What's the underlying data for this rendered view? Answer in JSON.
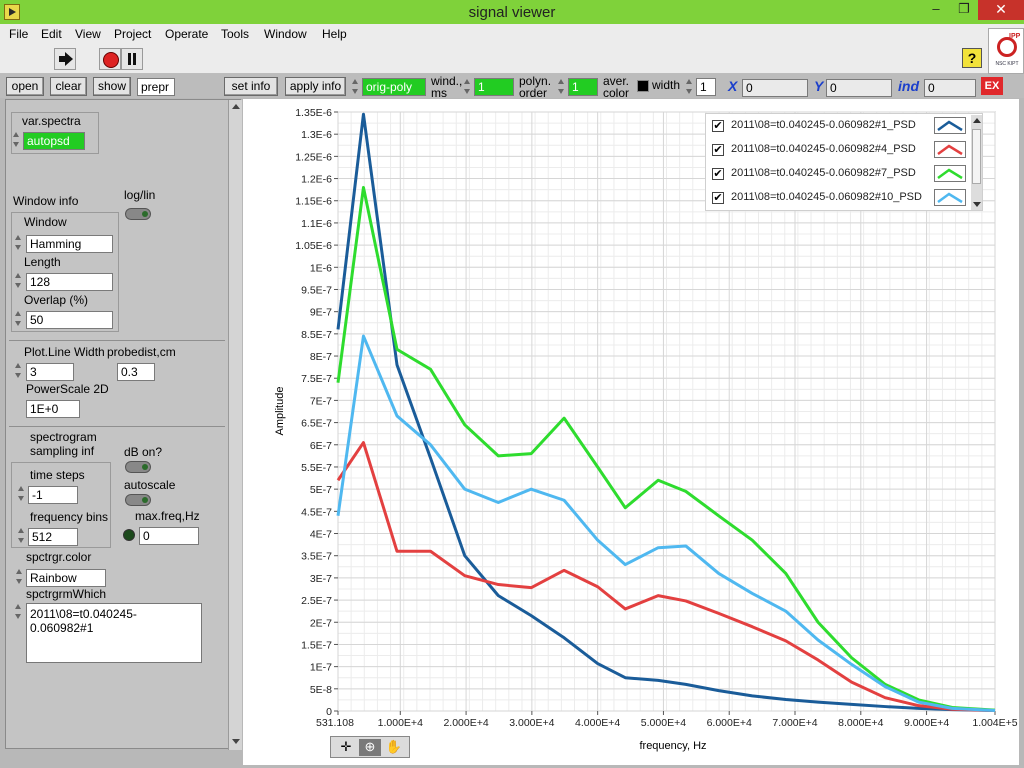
{
  "window": {
    "title": "signal viewer",
    "minimize": "–",
    "restore": "❐",
    "close": "✕"
  },
  "menu": [
    "File",
    "Edit",
    "View",
    "Project",
    "Operate",
    "Tools",
    "Window",
    "Help"
  ],
  "toolbar": {
    "help": "?"
  },
  "controls": {
    "open": "open",
    "clear": "clear",
    "show": "show",
    "prepr": "prepr",
    "set_info": "set info",
    "apply_info": "apply info",
    "orig_poly": "orig-poly",
    "wind_ms_label1": "wind.,",
    "wind_ms_label2": "ms",
    "wind_ms_value": "1",
    "polyn_label1": "polyn.",
    "polyn_label2": "order",
    "polyn_value": "1",
    "aver_label1": "aver.",
    "aver_label2": "color",
    "width_label": "width",
    "width_value": "1",
    "x_label": "X",
    "x_value": "0",
    "y_label": "Y",
    "y_value": "0",
    "ind_label": "ind",
    "ind_value": "0",
    "ex": "EX"
  },
  "left": {
    "var_spectra_label": "var.spectra",
    "var_spectra_value": "autopsd",
    "window_info": "Window info",
    "loglin": "log/lin",
    "window_label": "Window",
    "window_value": "Hamming",
    "length_label": "Length",
    "length_value": "128",
    "overlap_label": "Overlap (%)",
    "overlap_value": "50",
    "plot_line_width_label": "Plot.Line Width",
    "plot_line_width_value": "3",
    "probedist_label": "probedist,cm",
    "probedist_value": "0.3",
    "powerscale_label": "PowerScale 2D",
    "powerscale_value": "1E+0",
    "spectrogram_label": "spectrogram",
    "sampling_label": "sampling inf",
    "db_on_label": "dB on?",
    "autoscale_label": "autoscale",
    "time_steps_label": "time steps",
    "time_steps_value": "-1",
    "freq_bins_label": "frequency bins",
    "freq_bins_value": "512",
    "maxfreq_label": "max.freq,Hz",
    "maxfreq_value": "0",
    "spctrgr_color_label": "spctrgr.color",
    "spctrgr_color_value": "Rainbow",
    "spctrgrm_which_label": "spctrgrmWhich",
    "spctrgrm_which_value": "2011\\08=t0.040245-0.060982#1"
  },
  "chart_data": {
    "type": "line",
    "title": "",
    "xlabel": "frequency, Hz",
    "ylabel": "Amplitude",
    "xlim": [
      531.108,
      100400
    ],
    "ylim": [
      0,
      1.35e-06
    ],
    "x_ticks": [
      {
        "v": 531.108,
        "label": "531.108"
      },
      {
        "v": 10000,
        "label": "1.000E+4"
      },
      {
        "v": 20000,
        "label": "2.000E+4"
      },
      {
        "v": 30000,
        "label": "3.000E+4"
      },
      {
        "v": 40000,
        "label": "4.000E+4"
      },
      {
        "v": 50000,
        "label": "5.000E+4"
      },
      {
        "v": 60000,
        "label": "6.000E+4"
      },
      {
        "v": 70000,
        "label": "7.000E+4"
      },
      {
        "v": 80000,
        "label": "8.000E+4"
      },
      {
        "v": 90000,
        "label": "9.000E+4"
      },
      {
        "v": 100400,
        "label": "1.004E+5"
      }
    ],
    "y_ticks": [
      {
        "v": 0,
        "label": "0"
      },
      {
        "v": 5e-08,
        "label": "5E-8"
      },
      {
        "v": 1e-07,
        "label": "1E-7"
      },
      {
        "v": 1.5e-07,
        "label": "1.5E-7"
      },
      {
        "v": 2e-07,
        "label": "2E-7"
      },
      {
        "v": 2.5e-07,
        "label": "2.5E-7"
      },
      {
        "v": 3e-07,
        "label": "3E-7"
      },
      {
        "v": 3.5e-07,
        "label": "3.5E-7"
      },
      {
        "v": 4e-07,
        "label": "4E-7"
      },
      {
        "v": 4.5e-07,
        "label": "4.5E-7"
      },
      {
        "v": 5e-07,
        "label": "5E-7"
      },
      {
        "v": 5.5e-07,
        "label": "5.5E-7"
      },
      {
        "v": 6e-07,
        "label": "6E-7"
      },
      {
        "v": 6.5e-07,
        "label": "6.5E-7"
      },
      {
        "v": 7e-07,
        "label": "7E-7"
      },
      {
        "v": 7.5e-07,
        "label": "7.5E-7"
      },
      {
        "v": 8e-07,
        "label": "8E-7"
      },
      {
        "v": 8.5e-07,
        "label": "8.5E-7"
      },
      {
        "v": 9e-07,
        "label": "9E-7"
      },
      {
        "v": 9.5e-07,
        "label": "9.5E-7"
      },
      {
        "v": 1e-06,
        "label": "1E-6"
      },
      {
        "v": 1.05e-06,
        "label": "1.05E-6"
      },
      {
        "v": 1.1e-06,
        "label": "1.1E-6"
      },
      {
        "v": 1.15e-06,
        "label": "1.15E-6"
      },
      {
        "v": 1.2e-06,
        "label": "1.2E-6"
      },
      {
        "v": 1.25e-06,
        "label": "1.25E-6"
      },
      {
        "v": 1.3e-06,
        "label": "1.3E-6"
      },
      {
        "v": 1.35e-06,
        "label": "1.35E-6"
      }
    ],
    "grid": true,
    "legend_position": "top-right",
    "x": [
      531.108,
      4400,
      9500,
      14600,
      19800,
      24900,
      29900,
      34900,
      40000,
      44200,
      49200,
      53400,
      58400,
      63500,
      68600,
      73500,
      78600,
      83700,
      88800,
      93900,
      100400
    ],
    "series": [
      {
        "name": "2011\\08=t0.040245-0.060982#1_PSD",
        "color": "#1a5c99",
        "values": [
          8.6e-07,
          1.345e-06,
          7.8e-07,
          5.7e-07,
          3.5e-07,
          2.6e-07,
          2.15e-07,
          1.65e-07,
          1.07e-07,
          7.5e-08,
          6.9e-08,
          6e-08,
          4.6e-08,
          3.4e-08,
          2.6e-08,
          2e-08,
          1.5e-08,
          1e-08,
          6e-09,
          3e-09,
          1e-09
        ]
      },
      {
        "name": "2011\\08=t0.040245-0.060982#4_PSD",
        "color": "#e34040",
        "values": [
          5.2e-07,
          6.05e-07,
          3.6e-07,
          3.6e-07,
          3.05e-07,
          2.85e-07,
          2.78e-07,
          3.17e-07,
          2.8e-07,
          2.3e-07,
          2.6e-07,
          2.48e-07,
          2.2e-07,
          1.9e-07,
          1.58e-07,
          1.15e-07,
          6.5e-08,
          3e-08,
          1.2e-08,
          4e-09,
          1e-09
        ]
      },
      {
        "name": "2011\\08=t0.040245-0.060982#7_PSD",
        "color": "#2edc2e",
        "values": [
          7.4e-07,
          1.18e-06,
          8.15e-07,
          7.7e-07,
          6.45e-07,
          5.75e-07,
          5.8e-07,
          6.6e-07,
          5.5e-07,
          4.58e-07,
          5.2e-07,
          4.95e-07,
          4.4e-07,
          3.85e-07,
          3.1e-07,
          2e-07,
          1.2e-07,
          6e-08,
          2.5e-08,
          8e-09,
          2e-09
        ]
      },
      {
        "name": "2011\\08=t0.040245-0.060982#10_PSD",
        "color": "#4fb8f0",
        "values": [
          4.4e-07,
          8.45e-07,
          6.65e-07,
          6e-07,
          5e-07,
          4.7e-07,
          5e-07,
          4.75e-07,
          3.85e-07,
          3.3e-07,
          3.68e-07,
          3.72e-07,
          3.1e-07,
          2.65e-07,
          2.25e-07,
          1.6e-07,
          1.05e-07,
          5.5e-08,
          2e-08,
          6e-09,
          1e-09
        ]
      }
    ]
  }
}
